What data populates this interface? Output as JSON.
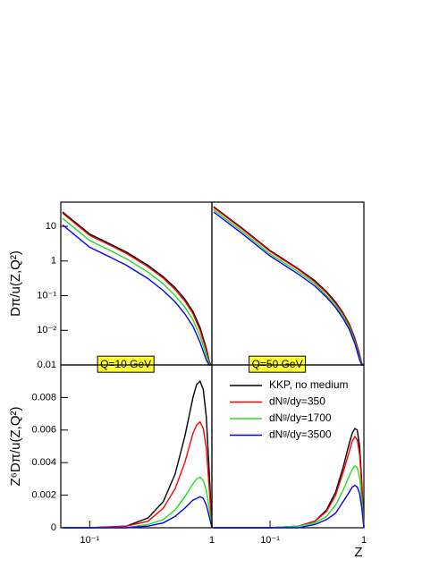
{
  "chart_data": [
    {
      "type": "line",
      "log_x": true,
      "log_y": true,
      "xlim": [
        0.058,
        1
      ],
      "ylim": [
        0.001,
        50
      ],
      "yticks": [
        10,
        1,
        {
          "value": 0.1,
          "label": "10⁻¹"
        },
        {
          "value": 0.01,
          "label": "10⁻²"
        }
      ],
      "bottom_label": "0.01",
      "y_label": "Dπ/u(Z,Q²)",
      "annotation": "Q=10 GeV",
      "x": [
        0.06,
        0.1,
        0.15,
        0.2,
        0.3,
        0.4,
        0.5,
        0.6,
        0.7,
        0.8,
        0.9,
        0.95,
        0.98
      ],
      "series": [
        {
          "color": "#000000",
          "values": [
            26,
            6,
            3,
            1.8,
            0.75,
            0.35,
            0.17,
            0.08,
            0.035,
            0.012,
            0.003,
            0.0013,
            0.001
          ]
        },
        {
          "color": "#ff0000",
          "values": [
            24,
            5.5,
            2.75,
            1.65,
            0.68,
            0.32,
            0.15,
            0.07,
            0.03,
            0.01,
            0.0026,
            0.0012,
            0.001
          ]
        },
        {
          "color": "#22dd22",
          "values": [
            17,
            3.9,
            1.95,
            1.15,
            0.48,
            0.22,
            0.1,
            0.047,
            0.02,
            0.0068,
            0.0019,
            0.0011,
            0.001
          ]
        },
        {
          "color": "#0000ff",
          "values": [
            11,
            2.5,
            1.25,
            0.75,
            0.31,
            0.14,
            0.066,
            0.03,
            0.013,
            0.0045,
            0.0014,
            0.001,
            0.001
          ]
        }
      ]
    },
    {
      "type": "line",
      "log_x": true,
      "log_y": true,
      "xlim": [
        0.024,
        1
      ],
      "ylim": [
        0.001,
        50
      ],
      "annotation": "Q=50 GeV",
      "x": [
        0.025,
        0.05,
        0.1,
        0.2,
        0.3,
        0.4,
        0.5,
        0.6,
        0.7,
        0.8,
        0.9,
        0.95,
        0.98
      ],
      "series": [
        {
          "color": "#000000",
          "values": [
            37,
            9,
            2,
            0.6,
            0.27,
            0.13,
            0.065,
            0.032,
            0.015,
            0.006,
            0.002,
            0.0011,
            0.001
          ]
        },
        {
          "color": "#ff0000",
          "values": [
            35,
            8.5,
            1.9,
            0.57,
            0.25,
            0.12,
            0.06,
            0.03,
            0.014,
            0.0055,
            0.0018,
            0.0011,
            0.001
          ]
        },
        {
          "color": "#22dd22",
          "values": [
            30,
            7.3,
            1.6,
            0.49,
            0.22,
            0.1,
            0.052,
            0.026,
            0.012,
            0.0048,
            0.0016,
            0.001,
            0.001
          ]
        },
        {
          "color": "#0000ff",
          "values": [
            26,
            6.3,
            1.4,
            0.42,
            0.19,
            0.09,
            0.045,
            0.022,
            0.0105,
            0.0042,
            0.0014,
            0.001,
            0.001
          ]
        }
      ]
    },
    {
      "type": "line",
      "log_x": true,
      "log_y": false,
      "xlim": [
        0.058,
        1
      ],
      "ylim": [
        0,
        0.01
      ],
      "yticks": [
        0,
        0.002,
        0.004,
        0.006,
        0.008
      ],
      "xticks": [
        {
          "value": 0.1,
          "label": "10⁻¹"
        },
        1
      ],
      "y_label": "Z⁶Dπ/u(Z,Q²)",
      "x": [
        0.06,
        0.1,
        0.2,
        0.3,
        0.4,
        0.5,
        0.6,
        0.7,
        0.75,
        0.8,
        0.85,
        0.9,
        0.95,
        1
      ],
      "series": [
        {
          "color": "#000000",
          "values": [
            0,
            0,
            0.0001,
            0.0006,
            0.0016,
            0.0033,
            0.0056,
            0.008,
            0.0088,
            0.009,
            0.0085,
            0.0068,
            0.0035,
            0
          ]
        },
        {
          "color": "#ff0000",
          "values": [
            0,
            0,
            0.0001,
            0.0004,
            0.0012,
            0.0024,
            0.004,
            0.0058,
            0.0063,
            0.0065,
            0.0061,
            0.0049,
            0.0025,
            0
          ]
        },
        {
          "color": "#22dd22",
          "values": [
            0,
            0,
            0,
            0.0002,
            0.0005,
            0.0011,
            0.0019,
            0.0027,
            0.003,
            0.0031,
            0.0029,
            0.0023,
            0.0012,
            0
          ]
        },
        {
          "color": "#0000ff",
          "values": [
            0,
            0,
            0,
            0.0001,
            0.0003,
            0.0007,
            0.0012,
            0.0017,
            0.0018,
            0.0019,
            0.0018,
            0.0014,
            0.0007,
            0
          ]
        }
      ]
    },
    {
      "type": "line",
      "log_x": true,
      "log_y": false,
      "xlim": [
        0.024,
        1
      ],
      "ylim": [
        0,
        0.01
      ],
      "xticks": [
        {
          "value": 0.1,
          "label": "10⁻¹"
        },
        1
      ],
      "x_label": "Z",
      "legend": "upper right",
      "x": [
        0.025,
        0.1,
        0.2,
        0.3,
        0.4,
        0.5,
        0.6,
        0.7,
        0.75,
        0.8,
        0.85,
        0.9,
        0.95,
        1
      ],
      "series": [
        {
          "name": "KKP, no medium",
          "color": "#000000",
          "values": [
            0,
            0,
            0.0001,
            0.0004,
            0.0011,
            0.0022,
            0.0037,
            0.0052,
            0.0058,
            0.0061,
            0.006,
            0.005,
            0.0028,
            0
          ]
        },
        {
          "name": "dNᵍ/dy=350",
          "color": "#ff0000",
          "values": [
            0,
            0,
            0.0001,
            0.0004,
            0.001,
            0.002,
            0.0034,
            0.0047,
            0.0053,
            0.0056,
            0.0054,
            0.0045,
            0.0025,
            0
          ]
        },
        {
          "name": "dNᵍ/dy=1700",
          "color": "#22dd22",
          "values": [
            0,
            0,
            0.0001,
            0.0003,
            0.0007,
            0.0014,
            0.0023,
            0.0032,
            0.0036,
            0.0038,
            0.0037,
            0.0031,
            0.0017,
            0
          ]
        },
        {
          "name": "dNᵍ/dy=3500",
          "color": "#0000ff",
          "values": [
            0,
            0,
            0,
            0.0002,
            0.0005,
            0.0009,
            0.0016,
            0.0022,
            0.0025,
            0.0026,
            0.0025,
            0.0021,
            0.0012,
            0
          ]
        }
      ]
    }
  ]
}
